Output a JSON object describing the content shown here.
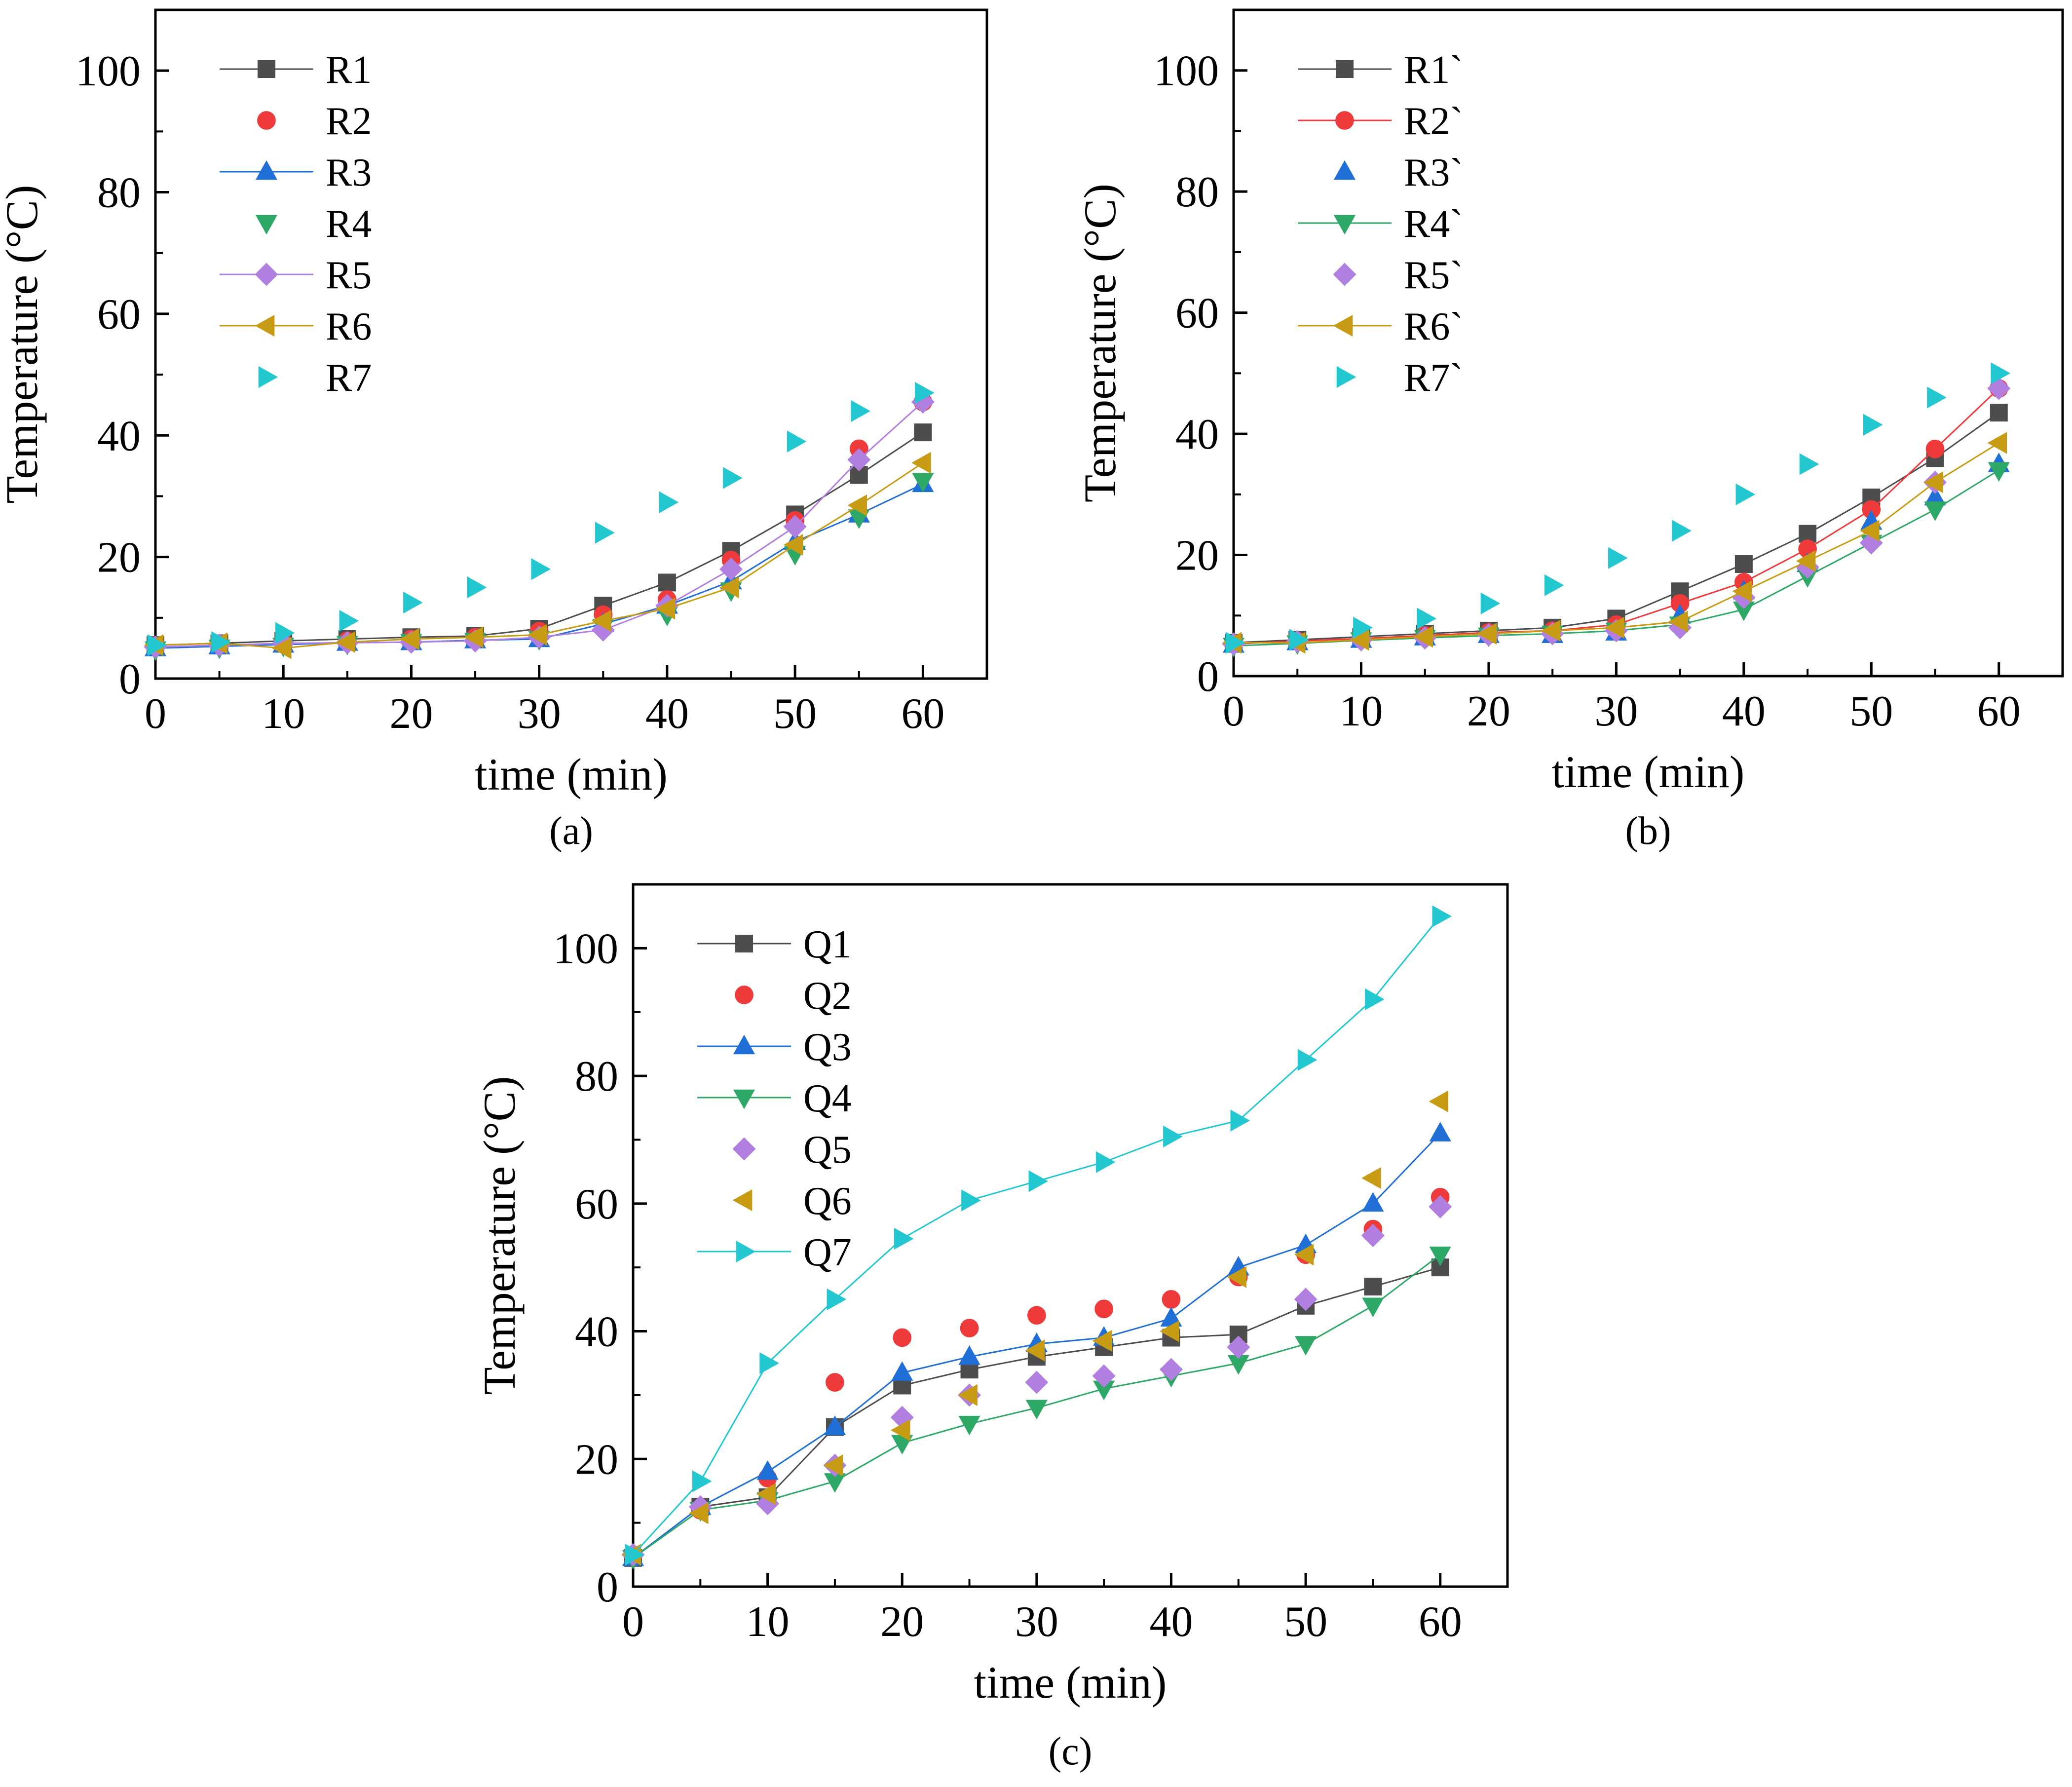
{
  "figure": {
    "panel_labels": [
      "(a)",
      "(b)",
      "(c)"
    ]
  },
  "colors": {
    "s1": "#4d4d4d",
    "s2": "#ee3a3a",
    "s3": "#1f6fd6",
    "s4": "#2ea866",
    "s5": "#b07fe0",
    "s6": "#c89b14",
    "s7": "#23c7cf"
  },
  "chart_data": [
    {
      "type": "line",
      "panel": "(a)",
      "title": "",
      "xlabel": "time (min)",
      "ylabel": "Temperature (°C)",
      "xlim": [
        0,
        65
      ],
      "ylim": [
        0,
        110
      ],
      "xticks": [
        0,
        10,
        20,
        30,
        40,
        50,
        60
      ],
      "yticks": [
        0,
        20,
        40,
        60,
        80,
        100
      ],
      "grid": false,
      "legend": "top-left",
      "x": [
        0,
        5,
        10,
        15,
        20,
        25,
        30,
        35,
        40,
        45,
        50,
        55,
        60
      ],
      "series": [
        {
          "name": "R1",
          "marker": "square",
          "line": true,
          "color": "#4d4d4d",
          "values": [
            5.5,
            5.8,
            6.2,
            6.5,
            6.8,
            7.0,
            8.2,
            12.0,
            15.8,
            21.0,
            27.0,
            33.5,
            40.5
          ]
        },
        {
          "name": "R2",
          "marker": "circle",
          "line": false,
          "color": "#ee3a3a",
          "values": [
            5.3,
            5.6,
            5.9,
            6.2,
            6.5,
            6.8,
            7.8,
            10.5,
            13.0,
            19.5,
            26.0,
            37.8,
            45.5
          ]
        },
        {
          "name": "R3",
          "marker": "triangle-up",
          "line": true,
          "color": "#1f6fd6",
          "values": [
            5.0,
            5.3,
            5.6,
            5.9,
            6.0,
            6.3,
            6.5,
            9.0,
            12.0,
            16.0,
            22.5,
            27.0,
            32.0
          ]
        },
        {
          "name": "R4",
          "marker": "triangle-down",
          "line": false,
          "color": "#2ea866",
          "values": [
            4.8,
            5.1,
            5.4,
            5.7,
            6.0,
            6.2,
            6.5,
            8.5,
            10.5,
            14.5,
            20.5,
            26.5,
            32.5
          ]
        },
        {
          "name": "R5",
          "marker": "diamond",
          "line": true,
          "color": "#b07fe0",
          "values": [
            5.2,
            5.5,
            5.8,
            5.9,
            6.0,
            6.2,
            6.8,
            8.0,
            12.0,
            18.0,
            25.0,
            36.0,
            45.5
          ]
        },
        {
          "name": "R6",
          "marker": "triangle-left",
          "line": true,
          "color": "#c89b14",
          "values": [
            5.5,
            5.8,
            5.0,
            6.0,
            6.5,
            6.8,
            7.2,
            9.5,
            11.5,
            15.0,
            22.0,
            28.5,
            35.5
          ]
        },
        {
          "name": "R7",
          "marker": "triangle-right",
          "line": false,
          "color": "#23c7cf",
          "values": [
            5.5,
            6.0,
            7.5,
            9.5,
            12.5,
            15.0,
            18.0,
            24.0,
            29.0,
            33.0,
            39.0,
            44.0,
            47.0
          ]
        }
      ]
    },
    {
      "type": "line",
      "panel": "(b)",
      "title": "",
      "xlabel": "time (min)",
      "ylabel": "Temperature (°C)",
      "xlim": [
        0,
        65
      ],
      "ylim": [
        0,
        110
      ],
      "xticks": [
        0,
        10,
        20,
        30,
        40,
        50,
        60
      ],
      "yticks": [
        0,
        20,
        40,
        60,
        80,
        100
      ],
      "grid": false,
      "legend": "top-left",
      "x": [
        0,
        5,
        10,
        15,
        20,
        25,
        30,
        35,
        40,
        45,
        50,
        55,
        60
      ],
      "series": [
        {
          "name": "R1`",
          "marker": "square",
          "line": true,
          "color": "#4d4d4d",
          "values": [
            5.5,
            6.0,
            6.5,
            7.0,
            7.5,
            8.0,
            9.5,
            14.0,
            18.5,
            23.5,
            29.5,
            36.0,
            43.5
          ]
        },
        {
          "name": "R2`",
          "marker": "circle",
          "line": true,
          "color": "#ee3a3a",
          "values": [
            5.3,
            5.8,
            6.2,
            6.7,
            7.2,
            7.5,
            8.5,
            12.0,
            15.5,
            21.0,
            27.5,
            37.5,
            47.5
          ]
        },
        {
          "name": "R3`",
          "marker": "triangle-up",
          "line": false,
          "color": "#1f6fd6",
          "values": [
            5.2,
            5.6,
            6.0,
            6.4,
            6.8,
            6.8,
            7.2,
            10.0,
            14.0,
            18.5,
            25.5,
            29.5,
            35.0
          ]
        },
        {
          "name": "R4`",
          "marker": "triangle-down",
          "line": true,
          "color": "#2ea866",
          "values": [
            5.0,
            5.4,
            5.9,
            6.3,
            6.7,
            7.0,
            7.5,
            8.5,
            11.0,
            16.5,
            22.0,
            27.5,
            34.0
          ]
        },
        {
          "name": "R5`",
          "marker": "diamond",
          "line": false,
          "color": "#b07fe0",
          "values": [
            5.3,
            5.7,
            6.0,
            6.3,
            6.8,
            7.0,
            7.5,
            8.0,
            13.0,
            18.0,
            22.0,
            32.0,
            47.5
          ]
        },
        {
          "name": "R6`",
          "marker": "triangle-left",
          "line": true,
          "color": "#c89b14",
          "values": [
            5.5,
            5.5,
            6.0,
            6.5,
            7.0,
            7.5,
            8.0,
            9.0,
            14.0,
            19.0,
            24.0,
            32.0,
            38.5
          ]
        },
        {
          "name": "R7`",
          "marker": "triangle-right",
          "line": false,
          "color": "#23c7cf",
          "values": [
            5.5,
            6.0,
            8.0,
            9.5,
            12.0,
            15.0,
            19.5,
            24.0,
            30.0,
            35.0,
            41.5,
            46.0,
            50.0
          ]
        }
      ]
    },
    {
      "type": "line",
      "panel": "(c)",
      "title": "",
      "xlabel": "time (min)",
      "ylabel": "Temperature (°C)",
      "xlim": [
        0,
        65
      ],
      "ylim": [
        0,
        110
      ],
      "xticks": [
        0,
        10,
        20,
        30,
        40,
        50,
        60
      ],
      "yticks": [
        0,
        20,
        40,
        60,
        80,
        100
      ],
      "grid": false,
      "legend": "top-left",
      "x": [
        0,
        5,
        10,
        15,
        20,
        25,
        30,
        35,
        40,
        45,
        50,
        55,
        60
      ],
      "series": [
        {
          "name": "Q1",
          "marker": "square",
          "line": true,
          "color": "#4d4d4d",
          "values": [
            4.5,
            12.5,
            14.0,
            25.0,
            31.5,
            34.0,
            36.0,
            37.5,
            39.0,
            39.5,
            44.0,
            47.0,
            50.0
          ]
        },
        {
          "name": "Q2",
          "marker": "circle",
          "line": false,
          "color": "#ee3a3a",
          "values": [
            5.0,
            12.0,
            17.0,
            32.0,
            39.0,
            40.5,
            42.5,
            43.5,
            45.0,
            48.5,
            52.0,
            56.0,
            61.0
          ]
        },
        {
          "name": "Q3",
          "marker": "triangle-up",
          "line": true,
          "color": "#1f6fd6",
          "values": [
            4.5,
            12.5,
            18.0,
            25.0,
            33.5,
            36.0,
            38.0,
            39.0,
            42.0,
            50.0,
            53.5,
            60.0,
            71.0
          ]
        },
        {
          "name": "Q4",
          "marker": "triangle-down",
          "line": true,
          "color": "#2ea866",
          "values": [
            4.5,
            12.0,
            13.5,
            16.5,
            22.5,
            25.5,
            28.0,
            31.0,
            33.0,
            35.0,
            38.0,
            44.0,
            52.0
          ]
        },
        {
          "name": "Q5",
          "marker": "diamond",
          "line": false,
          "color": "#b07fe0",
          "values": [
            5.0,
            12.5,
            13.0,
            19.0,
            26.5,
            30.0,
            32.0,
            33.0,
            34.0,
            37.5,
            45.0,
            55.0,
            59.5
          ]
        },
        {
          "name": "Q6",
          "marker": "triangle-left",
          "line": false,
          "color": "#c89b14",
          "values": [
            5.0,
            11.5,
            14.5,
            19.0,
            24.5,
            30.0,
            37.0,
            38.5,
            40.0,
            48.5,
            52.0,
            64.0,
            76.0
          ]
        },
        {
          "name": "Q7",
          "marker": "triangle-right",
          "line": true,
          "color": "#23c7cf",
          "values": [
            5.0,
            16.5,
            35.0,
            45.0,
            54.5,
            60.5,
            63.5,
            66.5,
            70.5,
            73.0,
            82.5,
            92.0,
            105.0
          ]
        }
      ]
    }
  ]
}
